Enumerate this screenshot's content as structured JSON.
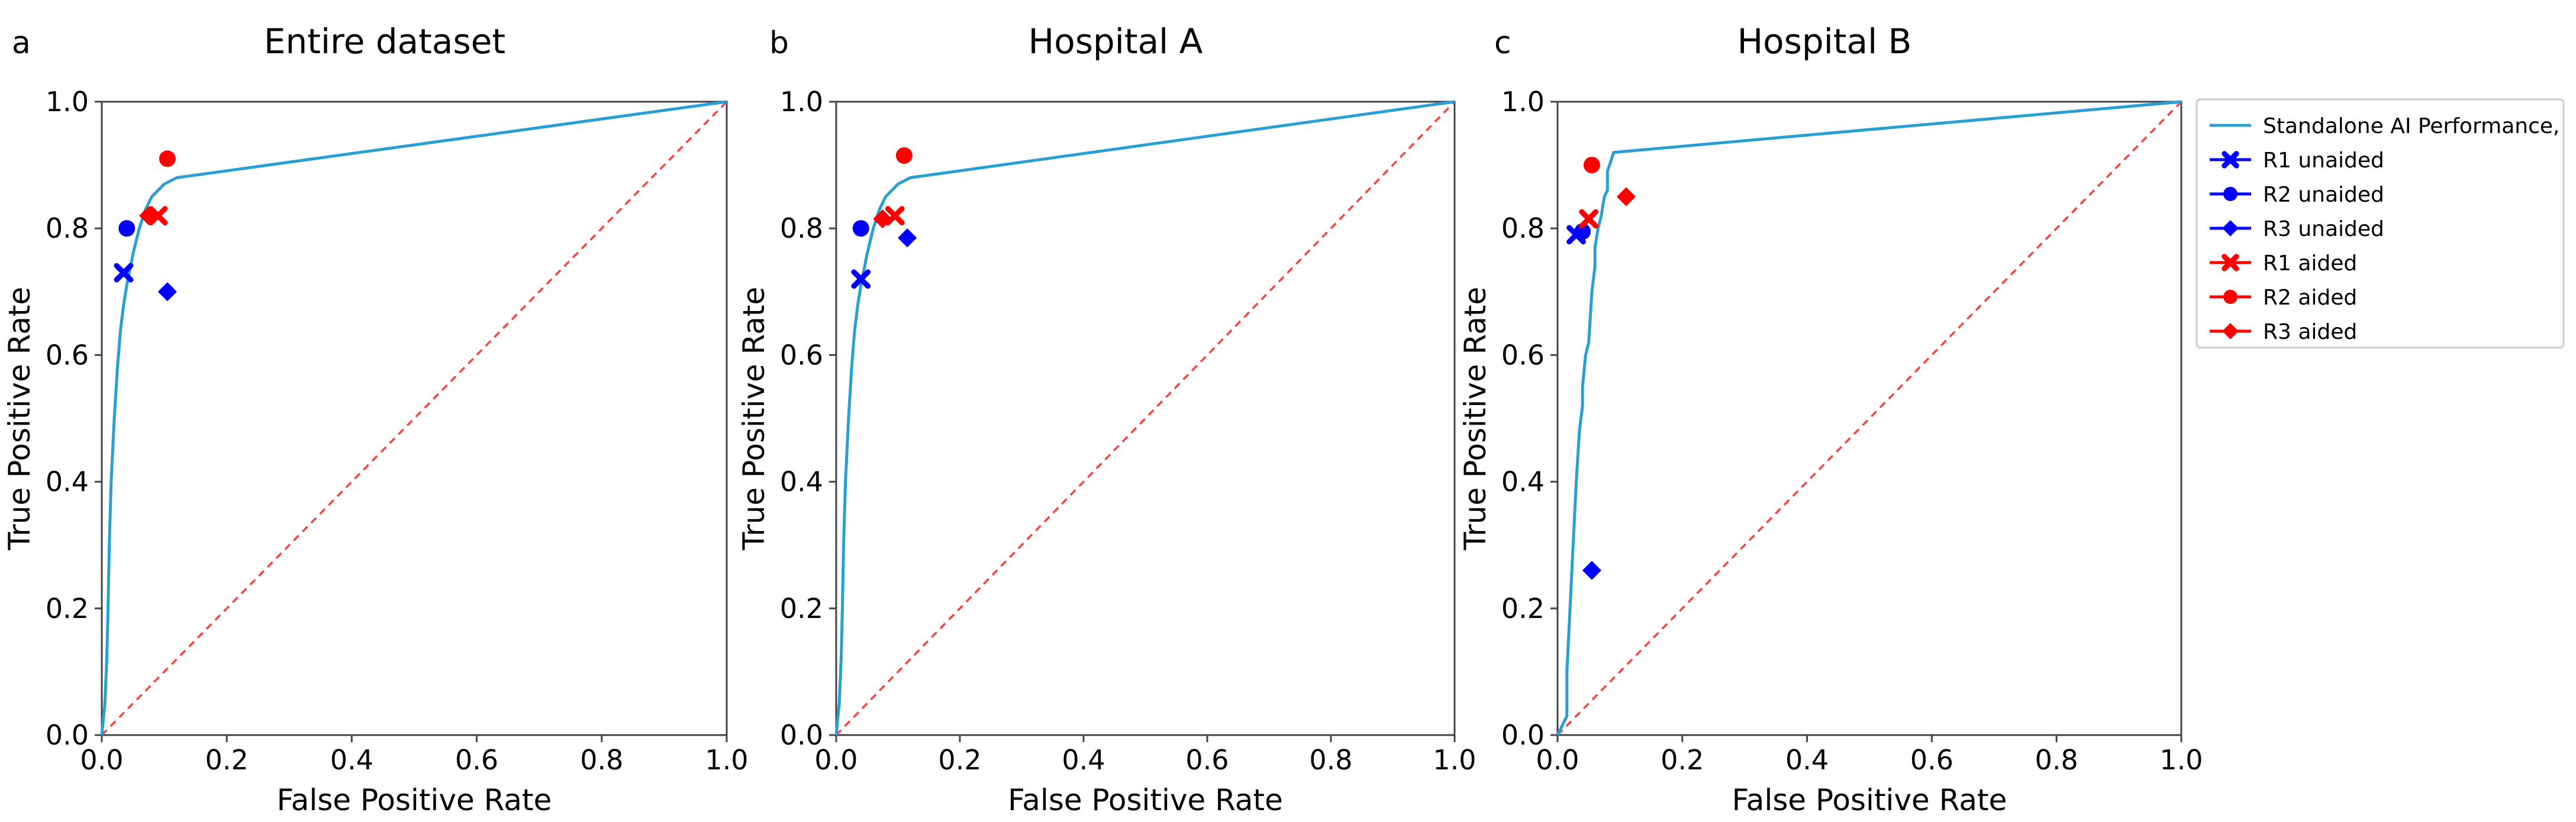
{
  "figure": {
    "legend_location": "outside right of panel c"
  },
  "colors": {
    "roc": "#2a9fd4",
    "unaided": "#0000ff",
    "aided": "#ff0000",
    "chance": "#ff4040",
    "axes": "#444444",
    "legend_border": "#cccccc"
  },
  "legend": {
    "entries": [
      {
        "label": "Standalone AI Performance,",
        "marker": "line",
        "color": "#2a9fd4"
      },
      {
        "label": "R1 unaided",
        "marker": "x",
        "color": "#0000ff"
      },
      {
        "label": "R2 unaided",
        "marker": "circle",
        "color": "#0000ff"
      },
      {
        "label": "R3 unaided",
        "marker": "diamond",
        "color": "#0000ff"
      },
      {
        "label": "R1 aided",
        "marker": "x",
        "color": "#ff0000"
      },
      {
        "label": "R2 aided",
        "marker": "circle",
        "color": "#ff0000"
      },
      {
        "label": "R3 aided",
        "marker": "diamond",
        "color": "#ff0000"
      }
    ]
  },
  "chart_data": [
    {
      "type": "line",
      "panel_letter": "a",
      "title": "Entire dataset",
      "xlabel": "False Positive Rate",
      "ylabel": "True Positive Rate",
      "xlim": [
        0,
        1
      ],
      "ylim": [
        0,
        1
      ],
      "xticks": [
        "0.0",
        "0.2",
        "0.4",
        "0.6",
        "0.8",
        "1.0"
      ],
      "yticks": [
        "0.0",
        "0.2",
        "0.4",
        "0.6",
        "0.8",
        "1.0"
      ],
      "roc_curve": {
        "name": "Standalone AI Performance,",
        "x": [
          0,
          0.005,
          0.008,
          0.01,
          0.012,
          0.015,
          0.02,
          0.025,
          0.03,
          0.035,
          0.04,
          0.05,
          0.06,
          0.07,
          0.08,
          0.1,
          0.12,
          1.0
        ],
        "y": [
          0,
          0.05,
          0.12,
          0.2,
          0.3,
          0.4,
          0.5,
          0.58,
          0.64,
          0.68,
          0.71,
          0.76,
          0.8,
          0.83,
          0.85,
          0.87,
          0.88,
          1.0
        ]
      },
      "chance_line": {
        "x": [
          0,
          1
        ],
        "y": [
          0,
          1
        ]
      },
      "readers": [
        {
          "name": "R1 unaided",
          "marker": "x",
          "group": "unaided",
          "fpr": 0.035,
          "tpr": 0.73
        },
        {
          "name": "R2 unaided",
          "marker": "circle",
          "group": "unaided",
          "fpr": 0.04,
          "tpr": 0.8
        },
        {
          "name": "R3 unaided",
          "marker": "diamond",
          "group": "unaided",
          "fpr": 0.105,
          "tpr": 0.7
        },
        {
          "name": "R1 aided",
          "marker": "x",
          "group": "aided",
          "fpr": 0.09,
          "tpr": 0.82
        },
        {
          "name": "R2 aided",
          "marker": "circle",
          "group": "aided",
          "fpr": 0.105,
          "tpr": 0.91
        },
        {
          "name": "R3 aided",
          "marker": "diamond",
          "group": "aided",
          "fpr": 0.075,
          "tpr": 0.82
        }
      ]
    },
    {
      "type": "line",
      "panel_letter": "b",
      "title": "Hospital A",
      "xlabel": "False Positive Rate",
      "ylabel": "True Positive Rate",
      "xlim": [
        0,
        1
      ],
      "ylim": [
        0,
        1
      ],
      "xticks": [
        "0.0",
        "0.2",
        "0.4",
        "0.6",
        "0.8",
        "1.0"
      ],
      "yticks": [
        "0.0",
        "0.2",
        "0.4",
        "0.6",
        "0.8",
        "1.0"
      ],
      "roc_curve": {
        "name": "Standalone AI Performance,",
        "x": [
          0,
          0.005,
          0.008,
          0.01,
          0.012,
          0.015,
          0.02,
          0.025,
          0.03,
          0.035,
          0.04,
          0.05,
          0.06,
          0.07,
          0.08,
          0.1,
          0.12,
          1.0
        ],
        "y": [
          0,
          0.05,
          0.12,
          0.2,
          0.3,
          0.4,
          0.5,
          0.58,
          0.64,
          0.68,
          0.71,
          0.76,
          0.8,
          0.83,
          0.85,
          0.87,
          0.88,
          1.0
        ]
      },
      "chance_line": {
        "x": [
          0,
          1
        ],
        "y": [
          0,
          1
        ]
      },
      "readers": [
        {
          "name": "R1 unaided",
          "marker": "x",
          "group": "unaided",
          "fpr": 0.04,
          "tpr": 0.72
        },
        {
          "name": "R2 unaided",
          "marker": "circle",
          "group": "unaided",
          "fpr": 0.04,
          "tpr": 0.8
        },
        {
          "name": "R3 unaided",
          "marker": "diamond",
          "group": "unaided",
          "fpr": 0.115,
          "tpr": 0.785
        },
        {
          "name": "R1 aided",
          "marker": "x",
          "group": "aided",
          "fpr": 0.095,
          "tpr": 0.82
        },
        {
          "name": "R2 aided",
          "marker": "circle",
          "group": "aided",
          "fpr": 0.11,
          "tpr": 0.915
        },
        {
          "name": "R3 aided",
          "marker": "diamond",
          "group": "aided",
          "fpr": 0.075,
          "tpr": 0.815
        }
      ]
    },
    {
      "type": "line",
      "panel_letter": "c",
      "title": "Hospital B",
      "xlabel": "False Positive Rate",
      "ylabel": "True Positive Rate",
      "xlim": [
        0,
        1
      ],
      "ylim": [
        0,
        1
      ],
      "xticks": [
        "0.0",
        "0.2",
        "0.4",
        "0.6",
        "0.8",
        "1.0"
      ],
      "yticks": [
        "0.0",
        "0.2",
        "0.4",
        "0.6",
        "0.8",
        "1.0"
      ],
      "roc_curve": {
        "name": "Standalone AI Performance,",
        "x": [
          0,
          0.005,
          0.01,
          0.015,
          0.015,
          0.02,
          0.025,
          0.03,
          0.035,
          0.04,
          0.04,
          0.045,
          0.05,
          0.055,
          0.06,
          0.06,
          0.065,
          0.07,
          0.075,
          0.08,
          0.08,
          0.09,
          1.0
        ],
        "y": [
          0,
          0.01,
          0.02,
          0.03,
          0.1,
          0.2,
          0.3,
          0.4,
          0.48,
          0.52,
          0.55,
          0.6,
          0.62,
          0.7,
          0.74,
          0.77,
          0.8,
          0.82,
          0.85,
          0.86,
          0.89,
          0.92,
          1.0
        ]
      },
      "chance_line": {
        "x": [
          0,
          1
        ],
        "y": [
          0,
          1
        ]
      },
      "readers": [
        {
          "name": "R1 unaided",
          "marker": "x",
          "group": "unaided",
          "fpr": 0.03,
          "tpr": 0.79
        },
        {
          "name": "R2 unaided",
          "marker": "circle",
          "group": "unaided",
          "fpr": 0.04,
          "tpr": 0.795
        },
        {
          "name": "R3 unaided",
          "marker": "diamond",
          "group": "unaided",
          "fpr": 0.055,
          "tpr": 0.26
        },
        {
          "name": "R1 aided",
          "marker": "x",
          "group": "aided",
          "fpr": 0.05,
          "tpr": 0.815
        },
        {
          "name": "R2 aided",
          "marker": "circle",
          "group": "aided",
          "fpr": 0.055,
          "tpr": 0.9
        },
        {
          "name": "R3 aided",
          "marker": "diamond",
          "group": "aided",
          "fpr": 0.11,
          "tpr": 0.85
        }
      ]
    }
  ]
}
